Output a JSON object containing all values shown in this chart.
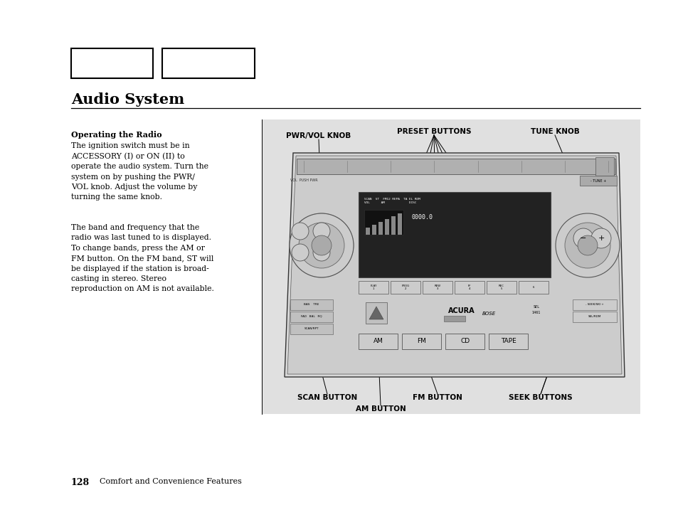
{
  "bg_color": "#ffffff",
  "gray_panel_color": "#e0e0e0",
  "title": "Audio System",
  "section_heading": "Operating the Radio",
  "paragraph1": "The ignition switch must be in\nACCESSORY (I) or ON (II) to\noperate the audio system. Turn the\nsystem on by pushing the PWR/\nVOL knob. Adjust the volume by\nturning the same knob.",
  "paragraph2": "The band and frequency that the\nradio was last tuned to is displayed.\nTo change bands, press the AM or\nFM button. On the FM band, ST will\nbe displayed if the station is broad-\ncasting in stereo. Stereo\nreproduction on AM is not available.",
  "footer_page_num": "128",
  "footer_text": "Comfort and Convenience Features",
  "label_pwr_vol": "PWR/VOL KNOB",
  "label_preset": "PRESET BUTTONS",
  "label_tune": "TUNE KNOB",
  "label_scan": "SCAN BUTTON",
  "label_am": "AM BUTTON",
  "label_fm": "FM BUTTON",
  "label_seek": "SEEK BUTTONS"
}
